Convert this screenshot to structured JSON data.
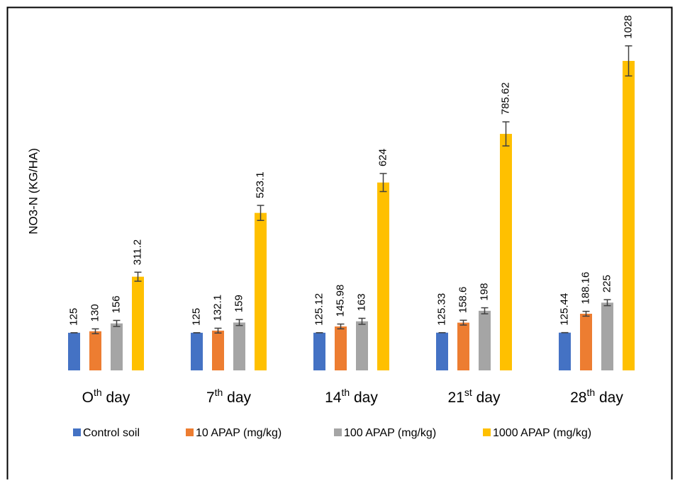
{
  "chart_data": {
    "type": "bar",
    "title": "",
    "xlabel": "",
    "ylabel": "NO3-N (KG/HA)",
    "ylim": [
      0,
      1100
    ],
    "grid": false,
    "legend_position": "bottom",
    "categories": [
      {
        "base": "O",
        "sup": "th",
        "after": "  day"
      },
      {
        "base": "7",
        "sup": "th",
        "after": " day"
      },
      {
        "base": "14",
        "sup": "th",
        "after": "  day"
      },
      {
        "base": "21",
        "sup": "st",
        "after": " day"
      },
      {
        "base": "28",
        "sup": "th",
        "after": " day"
      }
    ],
    "series": [
      {
        "name": "Control soil",
        "color": "#4472C4",
        "values": [
          125,
          125,
          125.12,
          125.33,
          125.44
        ],
        "labels": [
          "125",
          "125",
          "125.12",
          "125.33",
          "125.44"
        ],
        "errors": [
          0,
          0,
          0,
          0,
          0
        ]
      },
      {
        "name": "10 APAP (mg/kg)",
        "color": "#ED7D31",
        "values": [
          130,
          132.1,
          145.98,
          158.6,
          188.16
        ],
        "labels": [
          "130",
          "132.1",
          "145.98",
          "158.6",
          "188.16"
        ],
        "errors": [
          8,
          8,
          8,
          8,
          8
        ]
      },
      {
        "name": "100 APAP (mg/kg)",
        "color": "#A5A5A5",
        "values": [
          156,
          159,
          163,
          198,
          225
        ],
        "labels": [
          "156",
          "159",
          "163",
          "198",
          "225"
        ],
        "errors": [
          10,
          10,
          10,
          10,
          10
        ]
      },
      {
        "name": "1000 APAP (mg/kg)",
        "color": "#FFC000",
        "values": [
          311.2,
          523.1,
          624,
          785.62,
          1028
        ],
        "labels": [
          "311.2",
          "523.1",
          "624",
          "785.62",
          "1028"
        ],
        "errors": [
          15,
          25,
          30,
          40,
          50
        ]
      }
    ]
  }
}
